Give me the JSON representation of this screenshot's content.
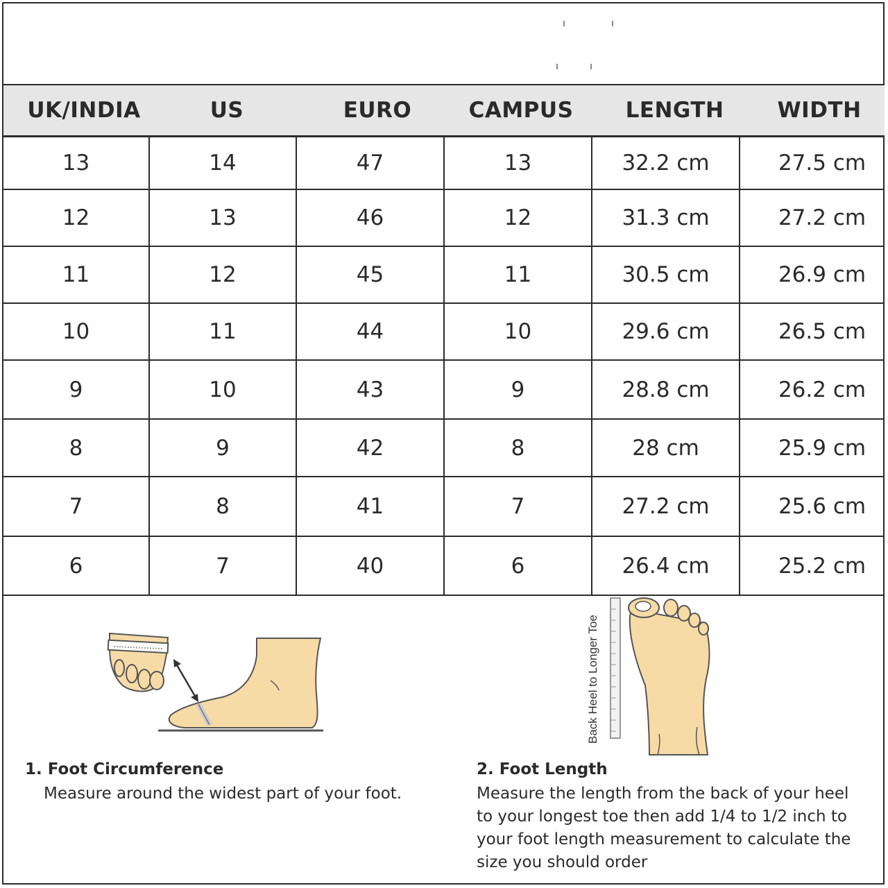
{
  "table": {
    "headers": [
      "UK/INDIA",
      "US",
      "EURO",
      "CAMPUS",
      "LENGTH",
      "WIDTH"
    ],
    "rows": [
      [
        "13",
        "14",
        "47",
        "13",
        "32.2 cm",
        "27.5 cm"
      ],
      [
        "12",
        "13",
        "46",
        "12",
        "31.3 cm",
        "27.2 cm"
      ],
      [
        "11",
        "12",
        "45",
        "11",
        "30.5 cm",
        "26.9 cm"
      ],
      [
        "10",
        "11",
        "44",
        "10",
        "29.6 cm",
        "26.5 cm"
      ],
      [
        "9",
        "10",
        "43",
        "9",
        "28.8 cm",
        "26.2 cm"
      ],
      [
        "8",
        "9",
        "42",
        "8",
        "28 cm",
        "25.9 cm"
      ],
      [
        "7",
        "8",
        "41",
        "7",
        "27.2 cm",
        "25.6 cm"
      ],
      [
        "6",
        "7",
        "40",
        "6",
        "26.4 cm",
        "25.2 cm"
      ]
    ]
  },
  "guide": {
    "circumference_title": "1. Foot Circumference",
    "circumference_text": "Measure around the widest part of your foot.",
    "length_title": "2. Foot Length",
    "length_text_lines": [
      "Measure the length from the back of your heel",
      "to your longest toe then add 1/4 to 1/2 inch to",
      "your foot length measurement to calculate the",
      "size you should order"
    ],
    "ruler_label": "Back Heel to Longer Toe"
  },
  "colors": {
    "skin": "#f7dba6",
    "outline": "#555555",
    "header_bg": "#e6e6e6",
    "line": "#2b2b2b"
  }
}
